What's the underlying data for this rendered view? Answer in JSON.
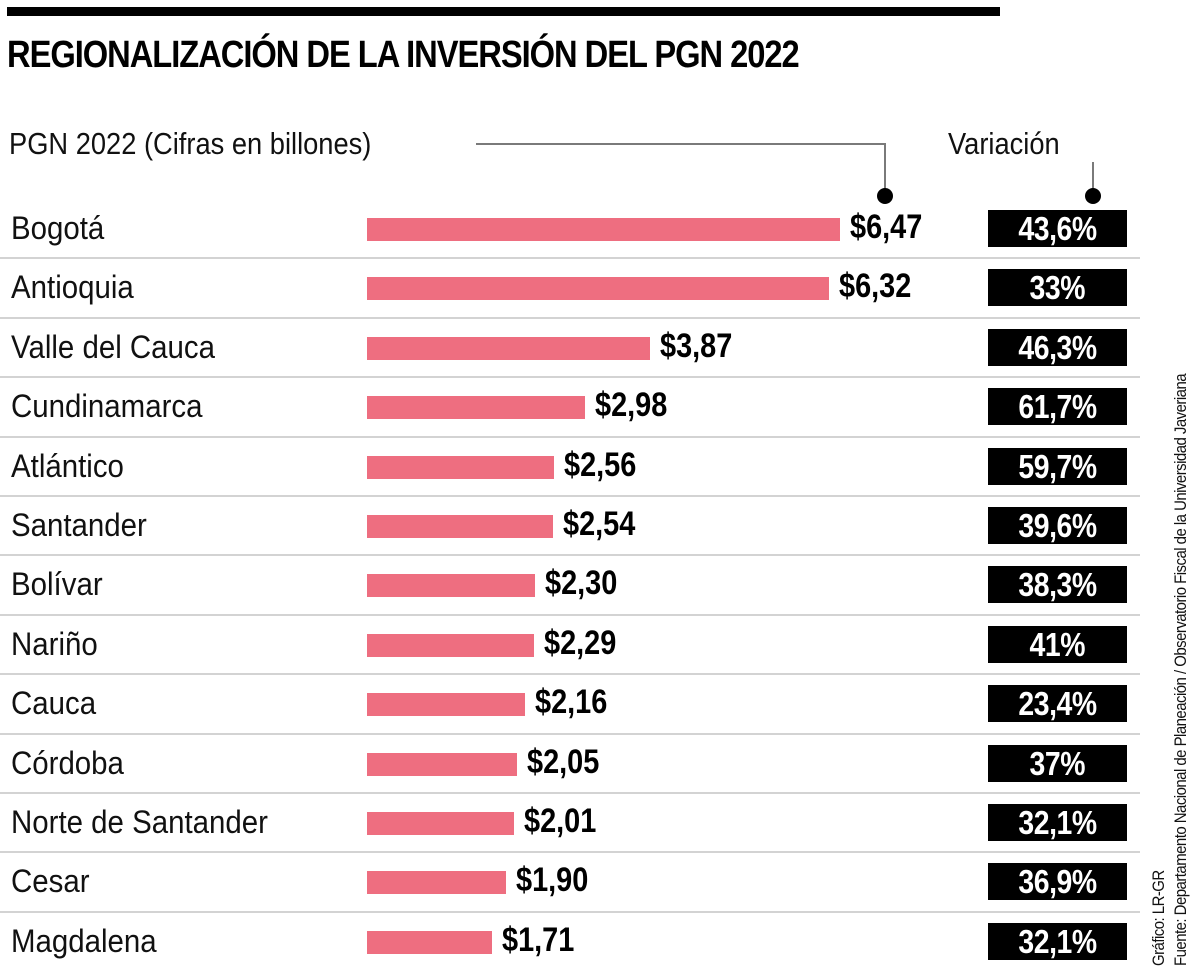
{
  "header": {
    "title": "REGIONALIZACIÓN DE LA INVERSIÓN DEL PGN 2022",
    "subtitle": "PGN 2022 (Cifras en billones)",
    "variation_label": "Variación"
  },
  "colors": {
    "bar": "#ee6e80",
    "badge_bg": "#000000",
    "badge_text": "#ffffff",
    "divider": "#d3d3d3"
  },
  "chart_data": {
    "type": "bar",
    "orientation": "horizontal",
    "title": "REGIONALIZACIÓN DE LA INVERSIÓN DEL PGN 2022",
    "xlabel": "PGN 2022 (Cifras en billones)",
    "ylabel": "",
    "grid": false,
    "legend": "none",
    "xlim": [
      0,
      6.47
    ],
    "categories": [
      "Bogotá",
      "Antioquia",
      "Valle del Cauca",
      "Cundinamarca",
      "Atlántico",
      "Santander",
      "Bolívar",
      "Nariño",
      "Cauca",
      "Córdoba",
      "Norte de Santander",
      "Cesar",
      "Magdalena"
    ],
    "values": [
      6.47,
      6.32,
      3.87,
      2.98,
      2.56,
      2.54,
      2.3,
      2.29,
      2.16,
      2.05,
      2.01,
      1.9,
      1.71
    ],
    "value_labels": [
      "$6,47",
      "$6,32",
      "$3,87",
      "$2,98",
      "$2,56",
      "$2,54",
      "$2,30",
      "$2,29",
      "$2,16",
      "$2,05",
      "$2,01",
      "$1,90",
      "$1,71"
    ],
    "variation_labels": [
      "43,6%",
      "33%",
      "46,3%",
      "61,7%",
      "59,7%",
      "39,6%",
      "38,3%",
      "41%",
      "23,4%",
      "37%",
      "32,1%",
      "36,9%",
      "32,1%"
    ],
    "variation_values": [
      43.6,
      33,
      46.3,
      61.7,
      59.7,
      39.6,
      38.3,
      41,
      23.4,
      37,
      32.1,
      36.9,
      32.1
    ]
  },
  "credits": {
    "graphic": "Gráfico: LR-GR",
    "source": "Fuente: Departamento Nacional de Planeación / Observatorio Fiscal de la Universidad Javeriana"
  }
}
